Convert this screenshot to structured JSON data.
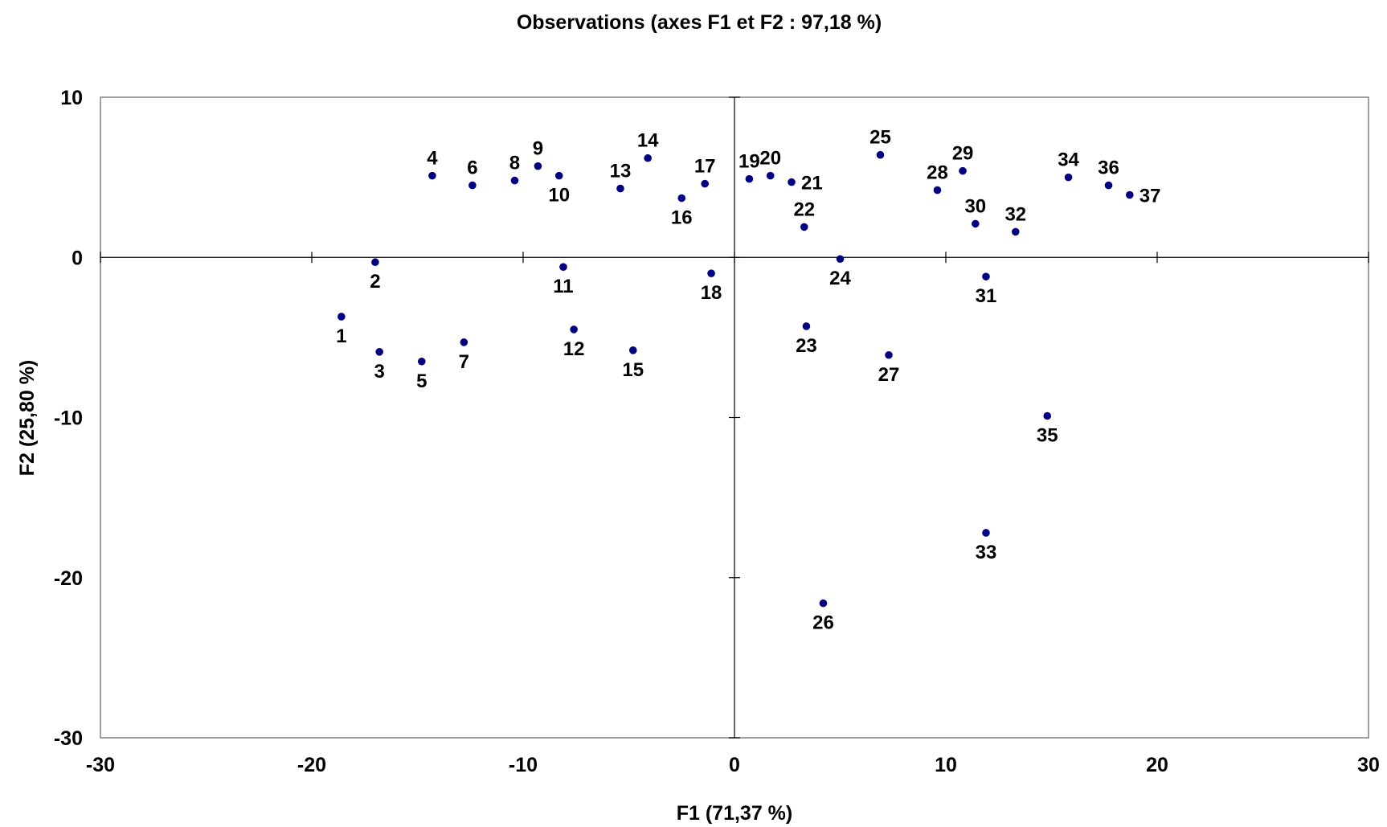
{
  "chart_data": {
    "type": "scatter",
    "title": "Observations (axes F1 et F2 : 97,18 %)",
    "xlabel": "F1 (71,37 %)",
    "ylabel": "F2 (25,80 %)",
    "xlim": [
      -30,
      30
    ],
    "ylim": [
      -30,
      10
    ],
    "xticks": [
      -30,
      -20,
      -10,
      0,
      10,
      20,
      30
    ],
    "yticks": [
      -30,
      -20,
      -10,
      0,
      10
    ],
    "grid": false,
    "legend": "none",
    "marker_color": "#000080",
    "points": [
      {
        "label": "1",
        "x": -18.6,
        "y": -3.7,
        "pos": "below"
      },
      {
        "label": "2",
        "x": -17.0,
        "y": -0.3,
        "pos": "below"
      },
      {
        "label": "3",
        "x": -16.8,
        "y": -5.9,
        "pos": "below"
      },
      {
        "label": "4",
        "x": -14.3,
        "y": 5.1,
        "pos": "above"
      },
      {
        "label": "5",
        "x": -14.8,
        "y": -6.5,
        "pos": "below"
      },
      {
        "label": "6",
        "x": -12.4,
        "y": 4.5,
        "pos": "above"
      },
      {
        "label": "7",
        "x": -12.8,
        "y": -5.3,
        "pos": "below"
      },
      {
        "label": "8",
        "x": -10.4,
        "y": 4.8,
        "pos": "above"
      },
      {
        "label": "9",
        "x": -9.3,
        "y": 5.7,
        "pos": "above"
      },
      {
        "label": "10",
        "x": -8.3,
        "y": 5.1,
        "pos": "below"
      },
      {
        "label": "11",
        "x": -8.1,
        "y": -0.6,
        "pos": "below"
      },
      {
        "label": "12",
        "x": -7.6,
        "y": -4.5,
        "pos": "below"
      },
      {
        "label": "13",
        "x": -5.4,
        "y": 4.3,
        "pos": "above"
      },
      {
        "label": "14",
        "x": -4.1,
        "y": 6.2,
        "pos": "above"
      },
      {
        "label": "15",
        "x": -4.8,
        "y": -5.8,
        "pos": "below"
      },
      {
        "label": "16",
        "x": -2.5,
        "y": 3.7,
        "pos": "below"
      },
      {
        "label": "17",
        "x": -1.4,
        "y": 4.6,
        "pos": "above"
      },
      {
        "label": "18",
        "x": -1.1,
        "y": -1.0,
        "pos": "below"
      },
      {
        "label": "19",
        "x": 0.7,
        "y": 4.9,
        "pos": "above"
      },
      {
        "label": "20",
        "x": 1.7,
        "y": 5.1,
        "pos": "above"
      },
      {
        "label": "21",
        "x": 2.7,
        "y": 4.7,
        "pos": "right"
      },
      {
        "label": "22",
        "x": 3.3,
        "y": 1.9,
        "pos": "above"
      },
      {
        "label": "23",
        "x": 3.4,
        "y": -4.3,
        "pos": "below"
      },
      {
        "label": "24",
        "x": 5.0,
        "y": -0.1,
        "pos": "below"
      },
      {
        "label": "25",
        "x": 6.9,
        "y": 6.4,
        "pos": "above"
      },
      {
        "label": "26",
        "x": 4.2,
        "y": -21.6,
        "pos": "below"
      },
      {
        "label": "27",
        "x": 7.3,
        "y": -6.1,
        "pos": "below"
      },
      {
        "label": "28",
        "x": 9.6,
        "y": 4.2,
        "pos": "above"
      },
      {
        "label": "29",
        "x": 10.8,
        "y": 5.4,
        "pos": "above"
      },
      {
        "label": "30",
        "x": 11.4,
        "y": 2.1,
        "pos": "above"
      },
      {
        "label": "31",
        "x": 11.9,
        "y": -1.2,
        "pos": "below"
      },
      {
        "label": "32",
        "x": 13.3,
        "y": 1.6,
        "pos": "above"
      },
      {
        "label": "33",
        "x": 11.9,
        "y": -17.2,
        "pos": "below"
      },
      {
        "label": "34",
        "x": 15.8,
        "y": 5.0,
        "pos": "above"
      },
      {
        "label": "35",
        "x": 14.8,
        "y": -9.9,
        "pos": "below"
      },
      {
        "label": "36",
        "x": 17.7,
        "y": 4.5,
        "pos": "above"
      },
      {
        "label": "37",
        "x": 18.7,
        "y": 3.9,
        "pos": "right"
      }
    ]
  }
}
